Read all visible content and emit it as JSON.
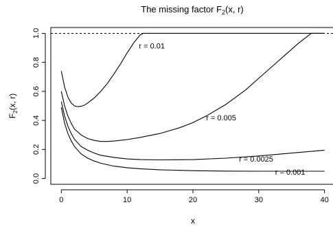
{
  "chart_data": {
    "type": "line",
    "title": "The missing factor F",
    "title_subscript": "2",
    "title_suffix": "(x, r)",
    "xlabel": "x",
    "ylabel": "F",
    "ylabel_subscript": "2",
    "ylabel_suffix": "(x, r)",
    "xlim": [
      -1.6,
      41.6
    ],
    "ylim": [
      -0.04,
      1.04
    ],
    "xticks": [
      0,
      10,
      20,
      30,
      40
    ],
    "yticks": [
      0.0,
      0.2,
      0.4,
      0.6,
      0.8,
      1.0
    ],
    "xtick_labels": [
      "0",
      "10",
      "20",
      "30",
      "40"
    ],
    "ytick_labels": [
      "0.0",
      "0.2",
      "0.4",
      "0.6",
      "0.8",
      "1.0"
    ],
    "reference_line": {
      "y": 1.0,
      "style": "dashed"
    },
    "series": [
      {
        "name": "r = 0.01",
        "x": [
          0,
          0.5,
          1,
          1.5,
          2,
          2.5,
          3,
          3.5,
          4,
          5,
          6,
          7,
          8,
          9,
          10,
          11,
          12,
          12.5,
          13,
          15,
          20,
          25,
          30,
          35,
          40
        ],
        "y": [
          0.74,
          0.63,
          0.56,
          0.52,
          0.5,
          0.495,
          0.497,
          0.505,
          0.52,
          0.555,
          0.6,
          0.655,
          0.72,
          0.79,
          0.865,
          0.935,
          0.99,
          1.0,
          1.0,
          1.0,
          1.0,
          1.0,
          1.0,
          1.0,
          1.0
        ]
      },
      {
        "name": "r = 0.005",
        "x": [
          0,
          0.5,
          1,
          1.5,
          2,
          3,
          4,
          5,
          6,
          7,
          8,
          10,
          12,
          15,
          18,
          20,
          22,
          25,
          28,
          30,
          32,
          34,
          36,
          37,
          38,
          40
        ],
        "y": [
          0.6,
          0.5,
          0.43,
          0.38,
          0.34,
          0.3,
          0.275,
          0.262,
          0.255,
          0.255,
          0.258,
          0.268,
          0.283,
          0.31,
          0.35,
          0.385,
          0.43,
          0.51,
          0.61,
          0.69,
          0.77,
          0.85,
          0.93,
          0.965,
          1.0,
          1.0
        ]
      },
      {
        "name": "r = 0.0025",
        "x": [
          0,
          0.5,
          1,
          1.5,
          2,
          3,
          4,
          5,
          6,
          8,
          10,
          12,
          15,
          20,
          25,
          30,
          35,
          40
        ],
        "y": [
          0.53,
          0.43,
          0.36,
          0.31,
          0.27,
          0.22,
          0.195,
          0.175,
          0.16,
          0.145,
          0.135,
          0.13,
          0.128,
          0.13,
          0.14,
          0.155,
          0.175,
          0.195
        ]
      },
      {
        "name": "r = 0.001",
        "x": [
          0,
          0.5,
          1,
          1.5,
          2,
          3,
          4,
          5,
          6,
          8,
          10,
          12,
          15,
          20,
          25,
          30,
          35,
          40
        ],
        "y": [
          0.49,
          0.38,
          0.31,
          0.26,
          0.22,
          0.17,
          0.14,
          0.12,
          0.105,
          0.085,
          0.074,
          0.067,
          0.06,
          0.054,
          0.051,
          0.05,
          0.05,
          0.05
        ]
      }
    ],
    "annotations": [
      {
        "text": "r = 0.01",
        "x": 11.8,
        "y": 0.915
      },
      {
        "text": "r = 0.005",
        "x": 22,
        "y": 0.42
      },
      {
        "text": "r = 0.0025",
        "x": 27,
        "y": 0.135
      },
      {
        "text": "r = 0.001",
        "x": 32.5,
        "y": 0.045
      }
    ]
  }
}
